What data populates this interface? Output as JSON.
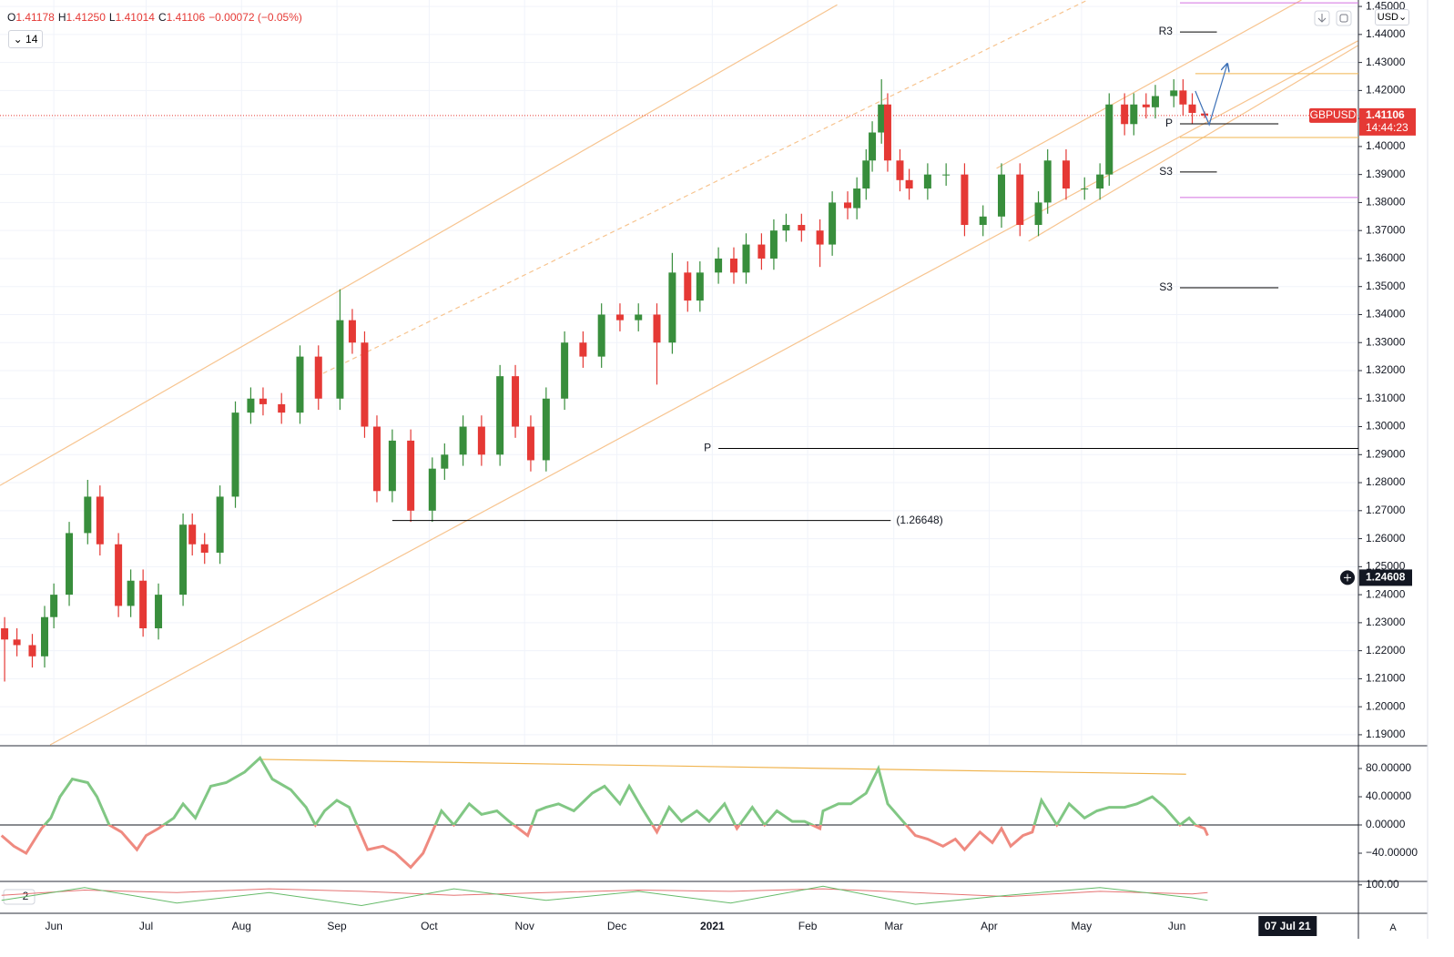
{
  "header": {
    "ohlc": [
      {
        "key": "O",
        "value": "1.41178"
      },
      {
        "key": "H",
        "value": "1.41250"
      },
      {
        "key": "L",
        "value": "1.41014"
      },
      {
        "key": "C",
        "value": "1.41106"
      }
    ],
    "change": "−0.00072 (−0.05%)",
    "interval": "14",
    "currency": "USD",
    "scale_mode": "A"
  },
  "chart_data": [
    {
      "type": "candlestick",
      "symbol": "GBPUSD",
      "up_color": "#388e3c",
      "down_color": "#e53935",
      "grid": true,
      "xlim": [
        -17.5,
        424
      ],
      "ylim": [
        1.1864,
        1.4523
      ],
      "xticks": [
        {
          "value": 0,
          "label": "Jun"
        },
        {
          "value": 30,
          "label": "Jul"
        },
        {
          "value": 61,
          "label": "Aug"
        },
        {
          "value": 92,
          "label": "Sep"
        },
        {
          "value": 122,
          "label": "Oct"
        },
        {
          "value": 153,
          "label": "Nov"
        },
        {
          "value": 183,
          "label": "Dec"
        },
        {
          "value": 214,
          "label": "2021"
        },
        {
          "value": 245,
          "label": "Feb"
        },
        {
          "value": 273,
          "label": "Mar"
        },
        {
          "value": 304,
          "label": "Apr"
        },
        {
          "value": 334,
          "label": "May"
        },
        {
          "value": 365,
          "label": "Jun"
        }
      ],
      "yticks": [
        {
          "value": 1.19,
          "label": "1.19000"
        },
        {
          "value": 1.2,
          "label": "1.20000"
        },
        {
          "value": 1.21,
          "label": "1.21000"
        },
        {
          "value": 1.22,
          "label": "1.22000"
        },
        {
          "value": 1.23,
          "label": "1.23000"
        },
        {
          "value": 1.24,
          "label": "1.24000"
        },
        {
          "value": 1.25,
          "label": "1.25000"
        },
        {
          "value": 1.26,
          "label": "1.26000"
        },
        {
          "value": 1.27,
          "label": "1.27000"
        },
        {
          "value": 1.28,
          "label": "1.28000"
        },
        {
          "value": 1.29,
          "label": "1.29000"
        },
        {
          "value": 1.3,
          "label": "1.30000"
        },
        {
          "value": 1.31,
          "label": "1.31000"
        },
        {
          "value": 1.32,
          "label": "1.32000"
        },
        {
          "value": 1.33,
          "label": "1.33000"
        },
        {
          "value": 1.34,
          "label": "1.34000"
        },
        {
          "value": 1.35,
          "label": "1.35000"
        },
        {
          "value": 1.36,
          "label": "1.36000"
        },
        {
          "value": 1.37,
          "label": "1.37000"
        },
        {
          "value": 1.38,
          "label": "1.38000"
        },
        {
          "value": 1.39,
          "label": "1.39000"
        },
        {
          "value": 1.4,
          "label": "1.40000"
        },
        {
          "value": 1.41,
          "label": "1.41000"
        },
        {
          "value": 1.42,
          "label": "1.42000"
        },
        {
          "value": 1.43,
          "label": "1.43000"
        },
        {
          "value": 1.44,
          "label": "1.44000"
        },
        {
          "value": 1.45,
          "label": "1.45000"
        }
      ],
      "x": [
        -16,
        -12,
        -7,
        -3,
        0,
        5,
        11,
        15,
        21,
        25,
        29,
        34,
        42,
        45,
        49,
        54,
        59,
        64,
        68,
        74,
        80,
        86,
        93,
        97,
        101,
        105,
        110,
        116,
        123,
        127,
        133,
        139,
        145,
        150,
        155,
        160,
        166,
        172,
        178,
        184,
        190,
        196,
        201,
        206,
        210,
        216,
        221,
        225,
        230,
        234,
        238,
        243,
        249,
        253,
        258,
        261,
        264,
        266,
        269,
        271,
        275,
        278,
        284,
        290,
        296,
        302,
        308,
        314,
        320,
        323,
        329,
        335,
        340,
        343,
        348,
        351,
        355,
        358,
        364,
        367,
        370,
        374
      ],
      "open": [
        1.228,
        1.224,
        1.222,
        1.218,
        1.232,
        1.24,
        1.262,
        1.275,
        1.258,
        1.236,
        1.245,
        1.228,
        1.24,
        1.265,
        1.258,
        1.255,
        1.275,
        1.305,
        1.31,
        1.308,
        1.305,
        1.325,
        1.31,
        1.338,
        1.33,
        1.3,
        1.277,
        1.295,
        1.27,
        1.285,
        1.29,
        1.3,
        1.29,
        1.318,
        1.3,
        1.288,
        1.31,
        1.33,
        1.325,
        1.34,
        1.338,
        1.34,
        1.33,
        1.355,
        1.345,
        1.355,
        1.36,
        1.355,
        1.365,
        1.36,
        1.37,
        1.372,
        1.37,
        1.365,
        1.38,
        1.378,
        1.385,
        1.395,
        1.405,
        1.415,
        1.395,
        1.388,
        1.385,
        1.39,
        1.39,
        1.372,
        1.375,
        1.39,
        1.372,
        1.38,
        1.395,
        1.385,
        1.385,
        1.39,
        1.415,
        1.408,
        1.415,
        1.414,
        1.418,
        1.42,
        1.415,
        1.41178
      ],
      "high": [
        1.232,
        1.228,
        1.226,
        1.236,
        1.244,
        1.266,
        1.281,
        1.279,
        1.262,
        1.249,
        1.249,
        1.244,
        1.269,
        1.269,
        1.262,
        1.279,
        1.309,
        1.314,
        1.314,
        1.312,
        1.329,
        1.329,
        1.349,
        1.342,
        1.334,
        1.304,
        1.299,
        1.299,
        1.289,
        1.294,
        1.304,
        1.304,
        1.322,
        1.322,
        1.304,
        1.314,
        1.334,
        1.334,
        1.344,
        1.344,
        1.344,
        1.344,
        1.362,
        1.359,
        1.359,
        1.364,
        1.364,
        1.369,
        1.369,
        1.374,
        1.376,
        1.376,
        1.374,
        1.384,
        1.384,
        1.389,
        1.399,
        1.409,
        1.424,
        1.419,
        1.399,
        1.392,
        1.394,
        1.394,
        1.394,
        1.379,
        1.394,
        1.394,
        1.384,
        1.399,
        1.399,
        1.389,
        1.394,
        1.419,
        1.419,
        1.419,
        1.419,
        1.422,
        1.424,
        1.424,
        1.419,
        1.4125
      ],
      "low": [
        1.209,
        1.218,
        1.214,
        1.214,
        1.228,
        1.236,
        1.258,
        1.254,
        1.232,
        1.232,
        1.225,
        1.224,
        1.236,
        1.254,
        1.251,
        1.251,
        1.271,
        1.301,
        1.304,
        1.301,
        1.301,
        1.306,
        1.306,
        1.326,
        1.296,
        1.273,
        1.273,
        1.266,
        1.266,
        1.281,
        1.286,
        1.286,
        1.286,
        1.296,
        1.284,
        1.284,
        1.306,
        1.321,
        1.321,
        1.334,
        1.334,
        1.315,
        1.326,
        1.341,
        1.341,
        1.351,
        1.351,
        1.351,
        1.356,
        1.356,
        1.366,
        1.366,
        1.357,
        1.361,
        1.374,
        1.374,
        1.381,
        1.391,
        1.401,
        1.391,
        1.384,
        1.381,
        1.381,
        1.386,
        1.368,
        1.368,
        1.371,
        1.368,
        1.368,
        1.376,
        1.381,
        1.381,
        1.381,
        1.386,
        1.404,
        1.404,
        1.41,
        1.41,
        1.414,
        1.411,
        1.408,
        1.41014
      ],
      "close": [
        1.224,
        1.222,
        1.218,
        1.232,
        1.24,
        1.262,
        1.275,
        1.258,
        1.236,
        1.245,
        1.228,
        1.24,
        1.265,
        1.258,
        1.255,
        1.275,
        1.305,
        1.31,
        1.308,
        1.305,
        1.325,
        1.31,
        1.338,
        1.33,
        1.3,
        1.277,
        1.295,
        1.27,
        1.285,
        1.29,
        1.3,
        1.29,
        1.318,
        1.3,
        1.288,
        1.31,
        1.33,
        1.325,
        1.34,
        1.338,
        1.34,
        1.33,
        1.355,
        1.345,
        1.355,
        1.36,
        1.355,
        1.365,
        1.36,
        1.37,
        1.372,
        1.37,
        1.365,
        1.38,
        1.378,
        1.385,
        1.395,
        1.405,
        1.415,
        1.395,
        1.388,
        1.385,
        1.39,
        1.39,
        1.372,
        1.375,
        1.39,
        1.372,
        1.38,
        1.395,
        1.385,
        1.385,
        1.39,
        1.415,
        1.408,
        1.415,
        1.414,
        1.418,
        1.42,
        1.415,
        1.412,
        1.41106
      ],
      "last_price": {
        "value": 1.41106,
        "label": "1.41106"
      },
      "countdown": "14:44:23",
      "crosshair": {
        "value": 1.24608,
        "label": "1.24608"
      },
      "crosshair_time": {
        "value": 401,
        "label": "07 Jul 21"
      },
      "levels": [
        {
          "label": "P",
          "value": 1.2922,
          "x": [
            216,
            424
          ],
          "color": "#000000",
          "label_side": "left"
        },
        {
          "label": "(1.26648)",
          "value": 1.26648,
          "x": [
            110,
            272
          ],
          "color": "#000000",
          "label_side": "right"
        },
        {
          "label": "R3",
          "value": 1.4409,
          "x": [
            366,
            378
          ],
          "color": "#000000",
          "label_side": "left"
        },
        {
          "label": "P",
          "value": 1.4081,
          "x": [
            366,
            398
          ],
          "color": "#000000",
          "label_side": "left"
        },
        {
          "label": "S3",
          "value": 1.3909,
          "x": [
            366,
            378
          ],
          "color": "#000000",
          "label_side": "left"
        },
        {
          "label": "S3",
          "value": 1.3496,
          "x": [
            366,
            398
          ],
          "color": "#000000",
          "label_side": "left"
        },
        {
          "value": 1.426,
          "x": [
            371,
            424
          ],
          "color": "#f0b44f"
        },
        {
          "value": 1.4032,
          "x": [
            366,
            424
          ],
          "color": "#f0b44f"
        },
        {
          "value": 1.4513,
          "x": [
            366,
            424
          ],
          "color": "#d36fe0"
        },
        {
          "value": 1.3818,
          "x": [
            366,
            424
          ],
          "color": "#d36fe0"
        }
      ],
      "trendlines": [
        {
          "x": [
            -17.5,
            254.6
          ],
          "values": [
            1.279,
            1.4506
          ],
          "color": "#f7c48f"
        },
        {
          "x": [
            -1.2,
            423.8
          ],
          "values": [
            1.1864,
            1.4377
          ],
          "color": "#f7c48f"
        },
        {
          "x": [
            87.5,
            336
          ],
          "values": [
            1.319,
            1.4523
          ],
          "color": "#f7c48f",
          "dash": true
        },
        {
          "x": [
            306.4,
            405.5
          ],
          "values": [
            1.3922,
            1.4523
          ],
          "color": "#f7c48f"
        },
        {
          "x": [
            316.8,
            423.8
          ],
          "values": [
            1.3662,
            1.436
          ],
          "color": "#f7c48f"
        }
      ],
      "projection": {
        "x": [
          371,
          375.5,
          381.4
        ],
        "values": [
          1.4198,
          1.4078,
          1.4295
        ],
        "color": "#3b6fb6"
      }
    },
    {
      "type": "line",
      "grid": false,
      "ylim": [
        -80,
        111
      ],
      "yticks": [
        {
          "value": 80,
          "label": "80.00000"
        },
        {
          "value": 40,
          "label": "40.00000"
        },
        {
          "value": 0,
          "label": "0.00000"
        },
        {
          "value": -40,
          "label": "−40.00000"
        }
      ],
      "x": [
        -17,
        -13,
        -9,
        -4,
        -1,
        2,
        6,
        11,
        14,
        18,
        22,
        27,
        30,
        34,
        39,
        42,
        46,
        51,
        56,
        62,
        67,
        71,
        77,
        82,
        85,
        88,
        92,
        96,
        99,
        102,
        107,
        111,
        116,
        120,
        123,
        126,
        130,
        135,
        139,
        144,
        148,
        154,
        157,
        160,
        164,
        169,
        175,
        179,
        184,
        187,
        191,
        196,
        200,
        204,
        209,
        213,
        218,
        222,
        227,
        231,
        235,
        240,
        244,
        249,
        250,
        255,
        259,
        264,
        268,
        271,
        275,
        280,
        284,
        289,
        293,
        296,
        301,
        305,
        308,
        311,
        315,
        318,
        321,
        326,
        330,
        335,
        339,
        343,
        348,
        352,
        357,
        361,
        366,
        369,
        371,
        374,
        375
      ],
      "series": [
        {
          "color": "#81c784",
          "negative_color": "#ef8a80",
          "values": [
            -15,
            -30,
            -40,
            -5,
            10,
            40,
            65,
            60,
            40,
            0,
            -10,
            -35,
            -15,
            -5,
            10,
            30,
            10,
            55,
            60,
            75,
            95,
            65,
            50,
            25,
            0,
            20,
            35,
            25,
            -5,
            -35,
            -30,
            -40,
            -60,
            -40,
            -10,
            20,
            0,
            30,
            15,
            20,
            5,
            -15,
            20,
            25,
            30,
            20,
            45,
            55,
            30,
            55,
            25,
            -10,
            25,
            5,
            20,
            5,
            30,
            -5,
            25,
            0,
            20,
            5,
            5,
            -5,
            20,
            30,
            30,
            45,
            80,
            30,
            10,
            -15,
            -20,
            -30,
            -20,
            -35,
            -10,
            -25,
            -5,
            -30,
            -15,
            -10,
            35,
            0,
            30,
            10,
            20,
            25,
            25,
            30,
            40,
            25,
            0,
            10,
            0,
            -5,
            -15
          ]
        }
      ],
      "trendlines": [
        {
          "x": [
            67,
            368
          ],
          "values": [
            93,
            72
          ],
          "color": "#f0b44f"
        }
      ]
    },
    {
      "type": "line",
      "grid": false,
      "ylim": [
        -10,
        110
      ],
      "indicator_count": "2",
      "yticks": [
        {
          "value": 100,
          "label": "100.00"
        }
      ],
      "x": [
        -17,
        10,
        40,
        70,
        100,
        130,
        160,
        190,
        220,
        250,
        280,
        310,
        340,
        370,
        375
      ],
      "series": [
        {
          "color": "#e57373",
          "values": [
            60,
            80,
            70,
            85,
            75,
            60,
            70,
            80,
            75,
            85,
            70,
            55,
            75,
            65,
            70
          ]
        },
        {
          "color": "#66bb6a",
          "values": [
            40,
            90,
            30,
            70,
            20,
            85,
            40,
            75,
            30,
            95,
            25,
            60,
            90,
            50,
            40
          ]
        }
      ]
    }
  ]
}
